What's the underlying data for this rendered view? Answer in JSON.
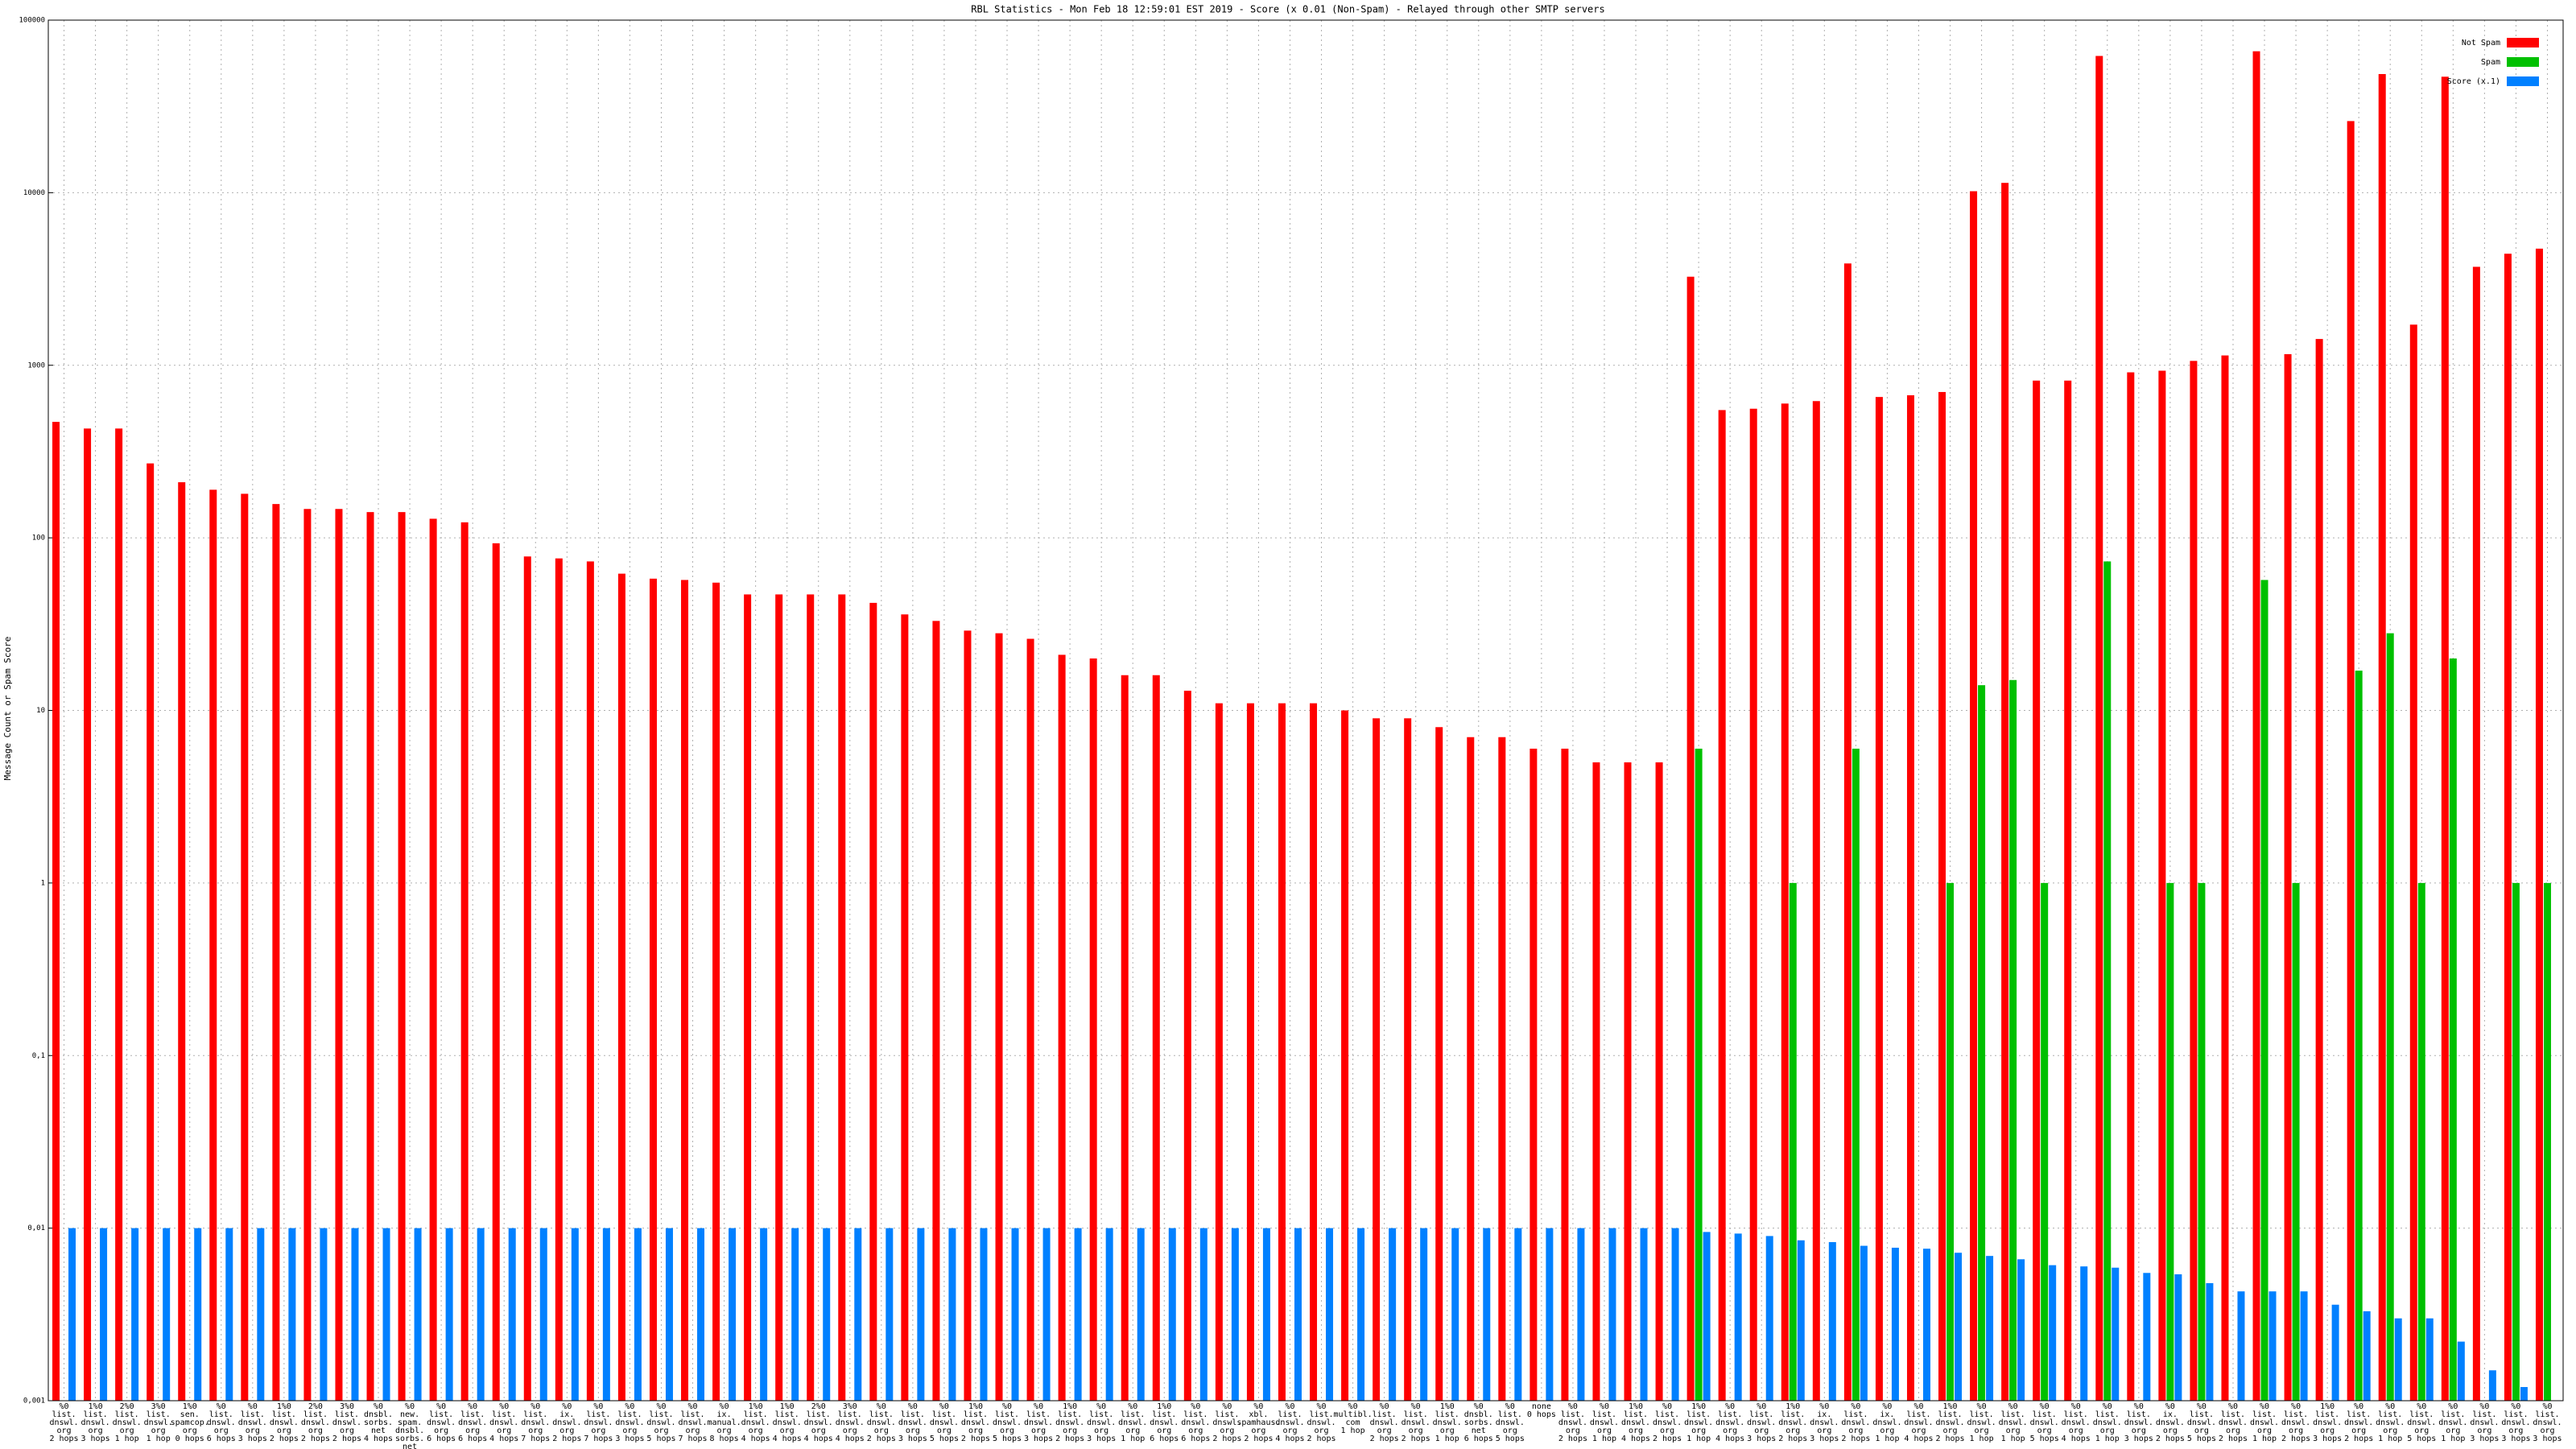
{
  "chart_data": {
    "type": "bar",
    "title": "RBL Statistics - Mon Feb 18 12:59:01 EST 2019 - Score (x 0.01 (Non-Spam) - Relayed through other SMTP servers",
    "y_label": "Message Count or Spam Score",
    "log_scale": true,
    "grid": true,
    "legend_position": "upper-right",
    "ylim": [
      0.001,
      100000
    ],
    "yticks": [
      {
        "value": 0.001,
        "label": "0,001"
      },
      {
        "value": 0.01,
        "label": "0,01"
      },
      {
        "value": 0.1,
        "label": "0,1"
      },
      1,
      10,
      100,
      1000,
      10000,
      100000
    ],
    "categories": [
      "%0\nlist.\ndnswl.\norg\n2 hops",
      "1%0\nlist.\ndnswl.\norg\n3 hops",
      "2%0\nlist.\ndnswl.\norg\n1 hop",
      "3%0\nlist.\ndnswl.\norg\n1 hop",
      "1%0\nsen.\nspamcop.\norg\n0 hops",
      "%0\nlist.\ndnswl.\norg\n6 hops",
      "%0\nlist.\ndnswl.\norg\n3 hops",
      "1%0\nlist.\ndnswl.\norg\n2 hops",
      "2%0\nlist.\ndnswl.\norg\n2 hops",
      "3%0\nlist.\ndnswl.\norg\n2 hops",
      "%0\ndnsbl.\nsorbs.\nnet\n4 hops",
      "%0\nnew.\nspam.\ndnsbl.\nsorbs.\nnet\n4 hops",
      "%0\nlist.\ndnswl.\norg\n6 hops",
      "%0\nlist.\ndnswl.\norg\n6 hops",
      "%0\nlist.\ndnswl.\norg\n4 hops",
      "%0\nlist.\ndnswl.\norg\n7 hops",
      "%0\nix.\ndnswl.\norg\n2 hops",
      "%0\nlist.\ndnswl.\norg\n7 hops",
      "%0\nlist.\ndnswl.\norg\n3 hops",
      "%0\nlist.\ndnswl.\norg\n5 hops",
      "%0\nlist.\ndnswl.\norg\n7 hops",
      "%0\nix.\nmanual.\norg\n8 hops",
      "1%0\nlist.\ndnswl.\norg\n4 hops",
      "1%0\nlist.\ndnswl.\norg\n4 hops",
      "2%0\nlist.\ndnswl.\norg\n4 hops",
      "3%0\nlist.\ndnswl.\norg\n4 hops",
      "%0\nlist.\ndnswl.\norg\n2 hops",
      "%0\nlist.\ndnswl.\norg\n3 hops",
      "%0\nlist.\ndnswl.\norg\n5 hops",
      "1%0\nlist.\ndnswl.\norg\n2 hops",
      "%0\nlist.\ndnswl.\norg\n5 hops",
      "%0\nlist.\ndnswl.\norg\n3 hops",
      "1%0\nlist.\ndnswl.\norg\n2 hops",
      "%0\nlist.\ndnswl.\norg\n3 hops",
      "%0\nlist.\ndnswl.\norg\n1 hop",
      "1%0\nlist.\ndnswl.\norg\n6 hops",
      "%0\nlist.\ndnswl.\norg\n6 hops",
      "%0\nlist.\ndnswl.\norg\n2 hops",
      "%0\nxbl.\nspamhaus.\norg\n2 hops",
      "%0\nlist.\ndnswl.\norg\n4 hops",
      "%0\nlist.\ndnswl.\norg\n2 hops",
      "%0\nmultibl.\ncom\n1 hop",
      "%0\nlist.\ndnswl.\norg\n2 hops",
      "%0\nlist.\ndnswl.\norg\n2 hops",
      "1%0\nlist.\ndnswl.\norg\n1 hop",
      "%0\ndnsbl.\nsorbs.\nnet\n6 hops",
      "%0\nlist.\ndnswl.\norg\n5 hops",
      "none\n0 hops",
      "%0\nlist.\ndnswl.\norg\n2 hops",
      "%0\nlist.\ndnswl.\norg\n1 hop",
      "1%0\nlist.\ndnswl.\norg\n4 hops",
      "%0\nlist.\ndnswl.\norg\n2 hops",
      "1%0\nlist.\ndnswl.\norg\n1 hop",
      "%0\nlist.\ndnswl.\norg\n4 hops",
      "%0\nlist.\ndnswl.\norg\n3 hops",
      "1%0\nlist.\ndnswl.\norg\n2 hops",
      "%0\nix.\ndnswl.\norg\n3 hops",
      "%0\nlist.\ndnswl.\norg\n2 hops",
      "%0\nix.\ndnswl.\norg\n1 hop",
      "%0\nlist.\ndnswl.\norg\n4 hops",
      "1%0\nlist.\ndnswl.\norg\n2 hops",
      "%0\nlist.\ndnswl.\norg\n1 hop",
      "%0\nlist.\ndnswl.\norg\n1 hop",
      "%0\nlist.\ndnswl.\norg\n5 hops",
      "%0\nlist.\ndnswl.\norg\n4 hops",
      "%0\nlist.\ndnswl.\norg\n1 hop",
      "%0\nlist.\ndnswl.\norg\n3 hops",
      "%0\nix.\ndnswl.\norg\n2 hops",
      "%0\nlist.\ndnswl.\norg\n5 hops",
      "%0\nlist.\ndnswl.\norg\n2 hops",
      "%0\nlist.\ndnswl.\norg\n1 hop",
      "%0\nlist.\ndnswl.\norg\n2 hops",
      "1%0\nlist.\ndnswl.\norg\n3 hops",
      "%0\nlist.\ndnswl.\norg\n2 hops",
      "%0\nlist.\ndnswl.\norg\n1 hop",
      "%0\nlist.\ndnswl.\norg\n5 hops",
      "%0\nlist.\ndnswl.\norg\n1 hop",
      "%0\nlist.\ndnswl.\norg\n3 hops",
      "%0\nlist.\ndnswl.\norg\n3 hops",
      "%0\nlist.\ndnswl.\norg\n3 hops"
    ],
    "series": [
      {
        "name": "Not Spam",
        "color": "#ff0000",
        "values": [
          470,
          430,
          430,
          270,
          210,
          190,
          180,
          157,
          147,
          147,
          141,
          141,
          129,
          123,
          93,
          78,
          76,
          73,
          62,
          58,
          57,
          55,
          47,
          47,
          47,
          47,
          42,
          36,
          33,
          29,
          28,
          26,
          21,
          20,
          16,
          16,
          13,
          11,
          11,
          11,
          11,
          10,
          9,
          9,
          8,
          7,
          7,
          6,
          6,
          5,
          5,
          5,
          3260,
          550,
          560,
          600,
          620,
          3890,
          655,
          670,
          700,
          10200,
          11400,
          815,
          815,
          62000,
          910,
          930,
          1060,
          1140,
          66000,
          1160,
          1420,
          26000,
          48700,
          1720,
          47000,
          3720,
          4430,
          4740
        ]
      },
      {
        "name": "Spam",
        "color": "#00c000",
        "values": [
          null,
          null,
          null,
          null,
          null,
          null,
          null,
          null,
          null,
          null,
          null,
          null,
          null,
          null,
          null,
          null,
          null,
          null,
          null,
          null,
          null,
          null,
          null,
          null,
          null,
          null,
          null,
          null,
          null,
          null,
          null,
          null,
          null,
          null,
          null,
          null,
          null,
          null,
          null,
          null,
          null,
          null,
          null,
          null,
          null,
          null,
          null,
          null,
          null,
          null,
          null,
          null,
          6,
          null,
          null,
          1,
          null,
          6,
          null,
          null,
          1,
          14,
          15,
          1,
          null,
          73,
          null,
          1,
          1,
          null,
          57,
          1,
          null,
          17,
          28,
          1,
          20,
          null,
          1,
          1
        ]
      },
      {
        "name": "Score (x.1)",
        "color": "#0080ff",
        "values": [
          0.01,
          0.01,
          0.01,
          0.01,
          0.01,
          0.01,
          0.01,
          0.01,
          0.01,
          0.01,
          0.01,
          0.01,
          0.01,
          0.01,
          0.01,
          0.01,
          0.01,
          0.01,
          0.01,
          0.01,
          0.01,
          0.01,
          0.01,
          0.01,
          0.01,
          0.01,
          0.01,
          0.01,
          0.01,
          0.01,
          0.01,
          0.01,
          0.01,
          0.01,
          0.01,
          0.01,
          0.01,
          0.01,
          0.01,
          0.01,
          0.01,
          0.01,
          0.01,
          0.01,
          0.01,
          0.01,
          0.01,
          0.01,
          0.01,
          0.01,
          0.01,
          0.01,
          0.0095,
          0.0093,
          0.009,
          0.0085,
          0.0083,
          0.0079,
          0.0077,
          0.0076,
          0.0072,
          0.0069,
          0.0066,
          0.0061,
          0.006,
          0.0059,
          0.0055,
          0.0054,
          0.0048,
          0.0043,
          0.0043,
          0.0043,
          0.0036,
          0.0033,
          0.003,
          0.003,
          0.0022,
          0.0015,
          0.0012,
          null
        ]
      }
    ]
  }
}
